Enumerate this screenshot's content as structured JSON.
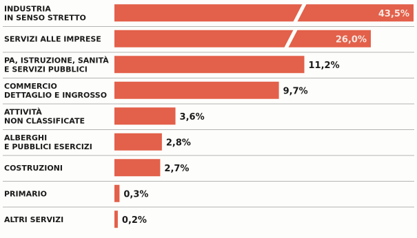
{
  "chart_data": {
    "type": "bar",
    "orientation": "horizontal",
    "categories": [
      [
        "INDUSTRIA",
        "IN SENSO STRETTO"
      ],
      [
        "SERVIZI ALLE IMPRESE"
      ],
      [
        "PA, ISTRUZIONE, SANITÀ",
        "E SERVIZI PUBBLICI"
      ],
      [
        "COMMERCIO",
        "DETTAGLIO E INGROSSO"
      ],
      [
        "ATTIVITÀ",
        "NON CLASSIFICATE"
      ],
      [
        "ALBERGHI",
        "E PUBBLICI ESERCIZI"
      ],
      [
        "COSTRUZIONI"
      ],
      [
        "PRIMARIO"
      ],
      [
        "ALTRI SERVIZI"
      ]
    ],
    "values": [
      43.5,
      26.0,
      11.2,
      9.7,
      3.6,
      2.8,
      2.7,
      0.3,
      0.2
    ],
    "value_labels": [
      "43,5%",
      "26,0%",
      "11,2%",
      "9,7%",
      "3,6%",
      "2,8%",
      "2,7%",
      "0,3%",
      "0,2%"
    ],
    "unit": "%",
    "broken_scale_bars": [
      0,
      1
    ],
    "bar_color": "#e3604a",
    "label_color_inside": "#f6e6e0",
    "label_color_outside": "#1a1a1a",
    "separator_color": "#9a9a9a",
    "grid": false,
    "legend": "none"
  }
}
